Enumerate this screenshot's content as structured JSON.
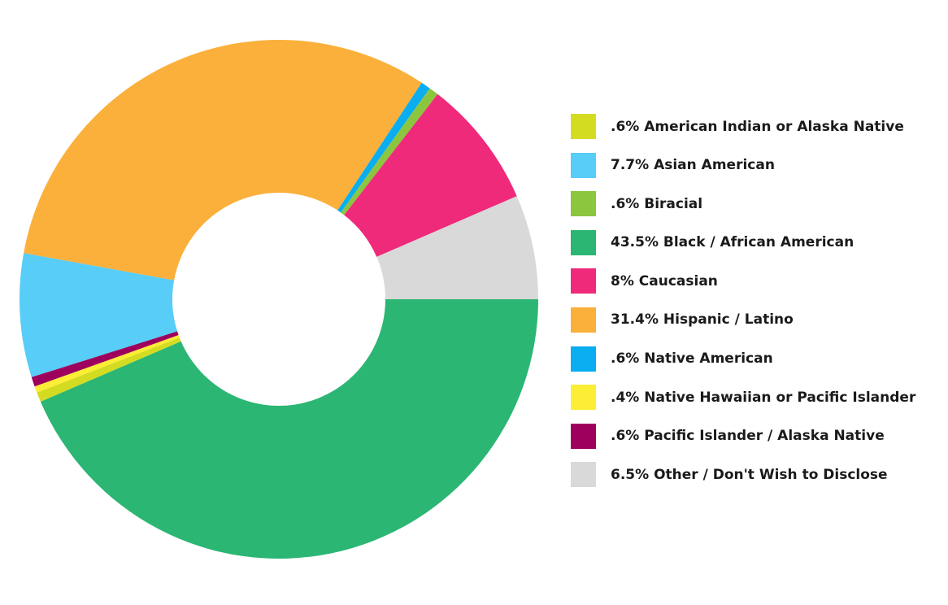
{
  "chart_data": {
    "type": "pie",
    "donut": true,
    "legend_position": "right",
    "slices": [
      {
        "label": ".6% American Indian or Alaska Native",
        "value": 0.6,
        "color": "#d4dc22"
      },
      {
        "label": "7.7% Asian American",
        "value": 7.7,
        "color": "#57cdf7"
      },
      {
        "label": ".6% Biracial",
        "value": 0.6,
        "color": "#8cc63f"
      },
      {
        "label": "43.5% Black / African American",
        "value": 43.5,
        "color": "#2bb673"
      },
      {
        "label": "8% Caucasian",
        "value": 8,
        "color": "#ef2a7b"
      },
      {
        "label": "31.4% Hispanic / Latino",
        "value": 31.4,
        "color": "#fbb03b"
      },
      {
        "label": ".6% Native American",
        "value": 0.6,
        "color": "#0aaef0"
      },
      {
        "label": ".4% Native Hawaiian or Pacific Islander",
        "value": 0.4,
        "color": "#fbee34"
      },
      {
        "label": ".6% Pacific Islander / Alaska Native",
        "value": 0.6,
        "color": "#9e005d"
      },
      {
        "label": "6.5% Other / Don't Wish to Disclose",
        "value": 6.5,
        "color": "#d9d9d9"
      }
    ],
    "drawing_order_clockwise_from_3_oclock": [
      "43.5% Black / African American",
      ".6% American Indian or Alaska Native",
      ".4% Native Hawaiian or Pacific Islander",
      ".6% Pacific Islander / Alaska Native",
      "7.7% Asian American",
      "31.4% Hispanic / Latino",
      ".6% Native American",
      ".6% Biracial",
      "8% Caucasian",
      "6.5% Other / Don't Wish to Disclose"
    ]
  }
}
